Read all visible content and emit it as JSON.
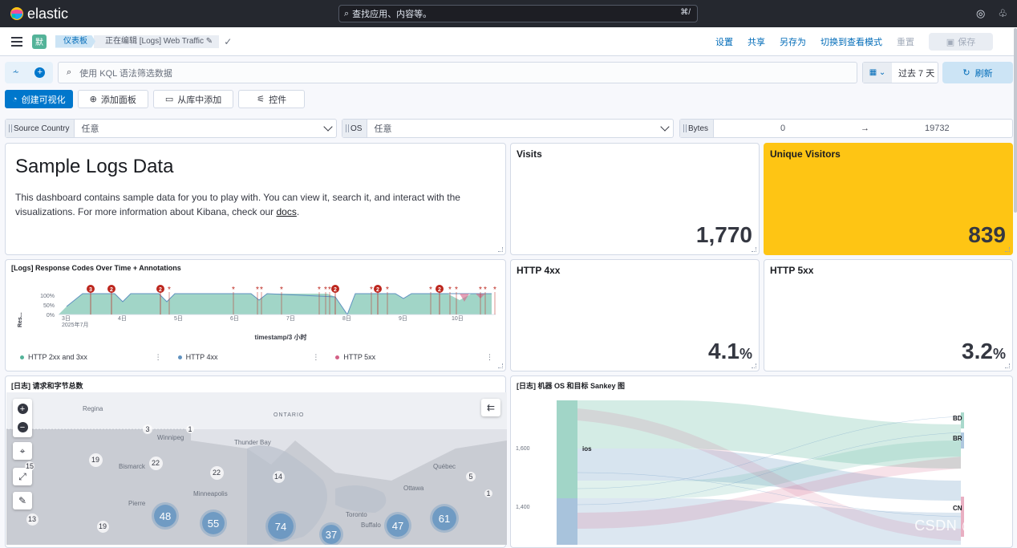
{
  "app": {
    "brand": "elastic",
    "search_placeholder": "查找应用、内容等。",
    "search_shortcut": "⌘/"
  },
  "nav": {
    "avatar_letter": "默",
    "breadcrumbs": [
      "仪表板",
      "正在编辑 [Logs] Web Traffic"
    ],
    "actions": [
      "设置",
      "共享",
      "另存为",
      "切换到查看模式",
      "重置"
    ],
    "save_label": "保存"
  },
  "query": {
    "placeholder": "使用 KQL 语法筛选数据",
    "time_range": "过去 7 天",
    "refresh_label": "刷新"
  },
  "toolbar": {
    "create_viz": "创建可视化",
    "add_panel": "添加面板",
    "add_from_library": "从库中添加",
    "controls": "控件"
  },
  "controls": {
    "source_country": {
      "label": "Source Country",
      "value": "任意"
    },
    "os": {
      "label": "OS",
      "value": "任意"
    },
    "bytes": {
      "label": "Bytes",
      "min": "0",
      "max": "19732"
    }
  },
  "panels": {
    "markdown": {
      "title": "Sample Logs Data",
      "body_prefix": "This dashboard contains sample data for you to play with. You can view it, search it, and interact with the visualizations. For more information about Kibana, check our ",
      "link": "docs",
      "body_suffix": "."
    },
    "visits": {
      "title": "Visits",
      "value": "1,770"
    },
    "unique_visitors": {
      "title": "Unique Visitors",
      "value": "839"
    },
    "http4xx": {
      "title": "HTTP 4xx",
      "value": "4.1",
      "unit": "%"
    },
    "http5xx": {
      "title": "HTTP 5xx",
      "value": "3.2",
      "unit": "%"
    },
    "response_codes": {
      "title": "[Logs] Response Codes Over Time + Annotations",
      "xlabel": "timestamp/3 小时",
      "ylabel": "Res...",
      "yticks": [
        "100%",
        "50%",
        "0%"
      ],
      "xticks": [
        "3日",
        "4日",
        "5日",
        "6日",
        "7日",
        "8日",
        "9日",
        "10日"
      ],
      "month_label": "2025年7月",
      "legend": [
        "HTTP 2xx and 3xx",
        "HTTP 4xx",
        "HTTP 5xx"
      ],
      "annotation_counts": [
        "3",
        "2",
        "2",
        "2",
        "2",
        "2"
      ]
    },
    "map": {
      "title": "[日志] 请求和字节总数",
      "places": [
        "Regina",
        "Winnipeg",
        "ONTARIO",
        "Thunder Bay",
        "Bismarck",
        "Minneapolis",
        "Pierre",
        "Québec",
        "Ottawa",
        "Toronto",
        "Buffalo"
      ],
      "clusters": [
        "3",
        "1",
        "19",
        "22",
        "22",
        "14",
        "15",
        "5",
        "1",
        "48",
        "55",
        "74",
        "37",
        "47",
        "61",
        "13",
        "19"
      ]
    },
    "sankey": {
      "title": "[日志] 机器 OS 和目标 Sankey 图",
      "yticks": [
        "1,600",
        "1,400"
      ],
      "source_label": "ios",
      "targets": [
        "BD",
        "BR",
        "CN"
      ]
    }
  },
  "colors": {
    "accent": "#0077cc",
    "yellow": "#fec514",
    "teal": "#54b399",
    "blue": "#6092c0",
    "pink": "#d36086",
    "annotation": "#bd271e"
  },
  "watermark": "CSDN @LKAI."
}
